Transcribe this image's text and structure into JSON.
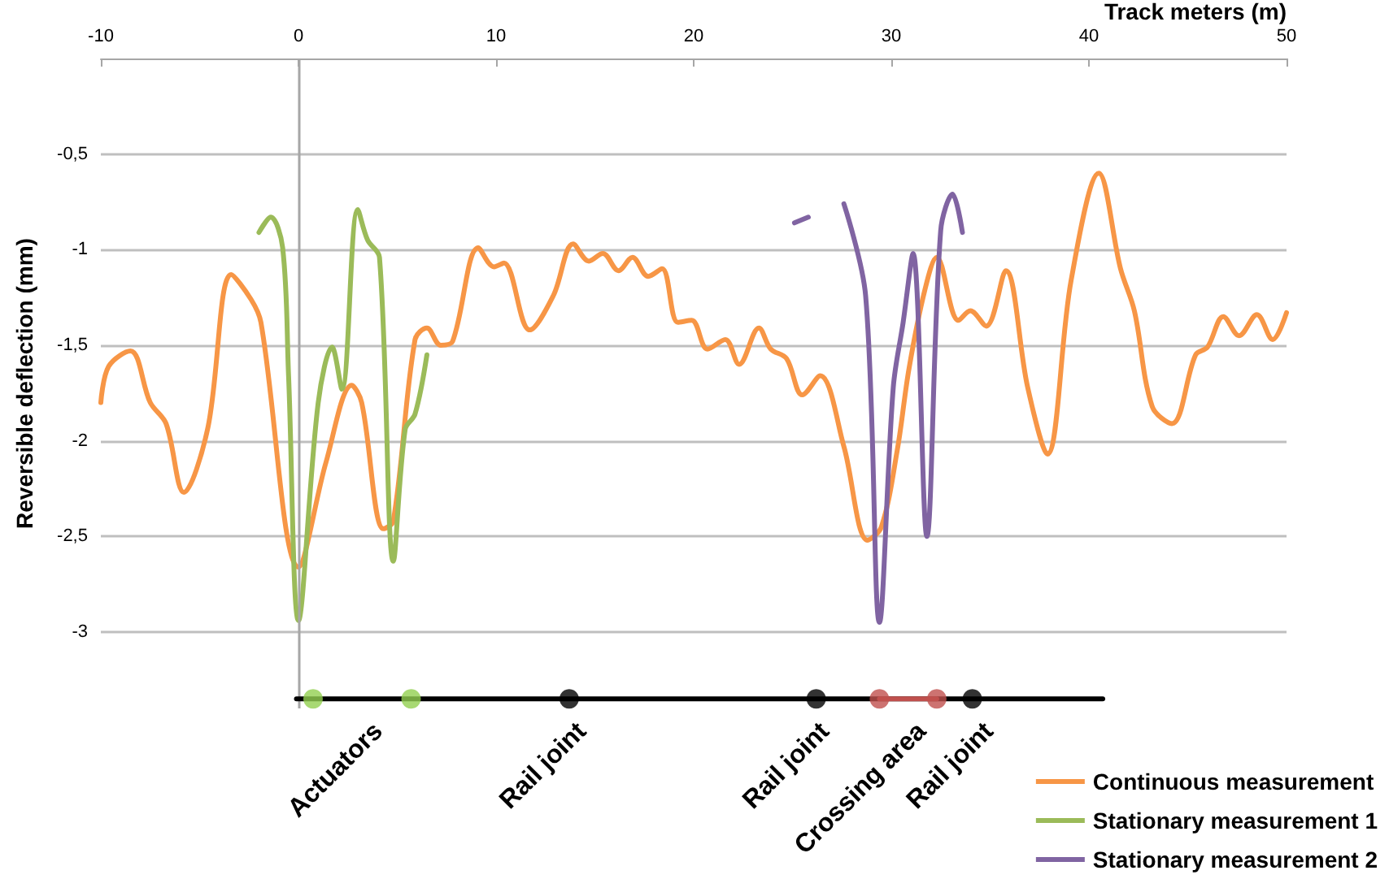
{
  "chart_data": {
    "type": "line",
    "xlabel": "Track meters (m)",
    "ylabel": "Reversible deflection (mm)",
    "xlim": [
      -10,
      50
    ],
    "xticks": [
      -10,
      0,
      10,
      20,
      30,
      40,
      50
    ],
    "ylim": [
      -3.4,
      0
    ],
    "yticks": [
      {
        "value": -3,
        "label": "-3"
      },
      {
        "value": -2.5,
        "label": "-2,5"
      },
      {
        "value": -2,
        "label": "-2"
      },
      {
        "value": -1.5,
        "label": "-1,5"
      },
      {
        "value": -1,
        "label": "-1"
      },
      {
        "value": -0.5,
        "label": "-0,5"
      }
    ],
    "grid": "y",
    "legend": "bottom right",
    "marker": "none",
    "line_style": "solid",
    "ref_lines": [
      {
        "axis": "x",
        "value": 0,
        "color": "#a6a6a6"
      }
    ],
    "series": [
      {
        "name": "Continuous measurement",
        "color": "#f79646",
        "x": [
          -10,
          -9.6,
          -8.5,
          -7.5,
          -6.7,
          -5.8,
          -4.6,
          -3.4,
          -2.4,
          -1.9,
          0,
          1.4,
          2.7,
          3.2,
          4.3,
          4.8,
          5.9,
          6.5,
          7.2,
          7.8,
          9.1,
          9.9,
          10.4,
          11.7,
          12.9,
          13.9,
          14.7,
          15.4,
          16.2,
          16.9,
          17.7,
          18.4,
          19.2,
          19.9,
          20.7,
          21.6,
          22.3,
          23.3,
          23.9,
          24.7,
          25.5,
          26.4,
          27.6,
          28.8,
          29.5,
          30.3,
          30.9,
          31.7,
          32.3,
          33.4,
          34,
          34.8,
          35.8,
          36.9,
          37.9,
          39.1,
          40.5,
          41.6,
          42.3,
          43.2,
          44.2,
          45.4,
          46,
          46.8,
          47.6,
          48.5,
          49.3,
          50
        ],
        "values": [
          -1.8,
          -1.61,
          -1.53,
          -1.8,
          -1.91,
          -2.27,
          -1.94,
          -1.13,
          -1.26,
          -1.38,
          -2.66,
          -2.11,
          -1.71,
          -1.8,
          -2.46,
          -2.42,
          -1.47,
          -1.41,
          -1.5,
          -1.48,
          -0.99,
          -1.09,
          -1.07,
          -1.42,
          -1.24,
          -0.97,
          -1.06,
          -1.02,
          -1.11,
          -1.04,
          -1.14,
          -1.1,
          -1.38,
          -1.37,
          -1.52,
          -1.47,
          -1.6,
          -1.41,
          -1.52,
          -1.57,
          -1.76,
          -1.66,
          -2.03,
          -2.52,
          -2.45,
          -2.05,
          -1.62,
          -1.21,
          -1.04,
          -1.37,
          -1.32,
          -1.4,
          -1.11,
          -1.72,
          -2.07,
          -1.16,
          -0.6,
          -1.1,
          -1.32,
          -1.82,
          -1.91,
          -1.55,
          -1.51,
          -1.35,
          -1.45,
          -1.34,
          -1.47,
          -1.33
        ]
      },
      {
        "name": "Stationary measurement 1",
        "color": "#9bbb59",
        "x": [
          -2,
          -1.4,
          -0.8,
          -0.5,
          0,
          1,
          1.7,
          2.2,
          3,
          3.5,
          4.1,
          4.8,
          5.4,
          5.9,
          6.5
        ],
        "values": [
          -0.91,
          -0.83,
          -0.99,
          -1.66,
          -2.94,
          -1.8,
          -1.51,
          -1.73,
          -0.79,
          -0.95,
          -1.04,
          -2.63,
          -1.94,
          -1.86,
          -1.55
        ]
      },
      {
        "name": "Stationary measurement 2",
        "color": "#8064a2",
        "x": [
          25.1,
          25.8,
          26.7,
          27.6,
          28.7,
          29.4,
          30.1,
          30.6,
          31.1,
          31.8,
          32.5,
          33.1,
          33.6
        ],
        "values": [
          -0.86,
          -0.83,
          null,
          -0.76,
          -1.24,
          -2.95,
          -1.72,
          -1.38,
          -1.02,
          -2.5,
          -0.9,
          -0.71,
          -0.91
        ]
      },
      {
        "color": "#000000",
        "x": [
          -0.1,
          40.7
        ],
        "values": [
          -3.35,
          -3.35
        ]
      },
      {
        "color": "#c0504d",
        "x": [
          29.4,
          32.3
        ],
        "values": [
          -3.35,
          -3.35
        ]
      },
      {
        "type": "scatter",
        "marker": "circle",
        "x": [
          0.74,
          5.7,
          13.7,
          26.2,
          29.4,
          32.3,
          34.1
        ],
        "values": [
          -3.35,
          -3.35,
          -3.35,
          -3.35,
          -3.35,
          -3.35,
          -3.35
        ],
        "colors": [
          "#92d050",
          "#92d050",
          "#000000",
          "#000000",
          "#c0504d",
          "#c0504d",
          "#000000"
        ]
      }
    ],
    "annotations": [
      {
        "text": "Actuators",
        "x": 3.6,
        "y": -3.35
      },
      {
        "text": "Rail joint",
        "x": 13.9,
        "y": -3.35
      },
      {
        "text": "Rail joint",
        "x": 26.2,
        "y": -3.35
      },
      {
        "text": "Crossing area",
        "x": 31.1,
        "y": -3.35
      },
      {
        "text": "Rail joint",
        "x": 34.5,
        "y": -3.35
      }
    ]
  }
}
